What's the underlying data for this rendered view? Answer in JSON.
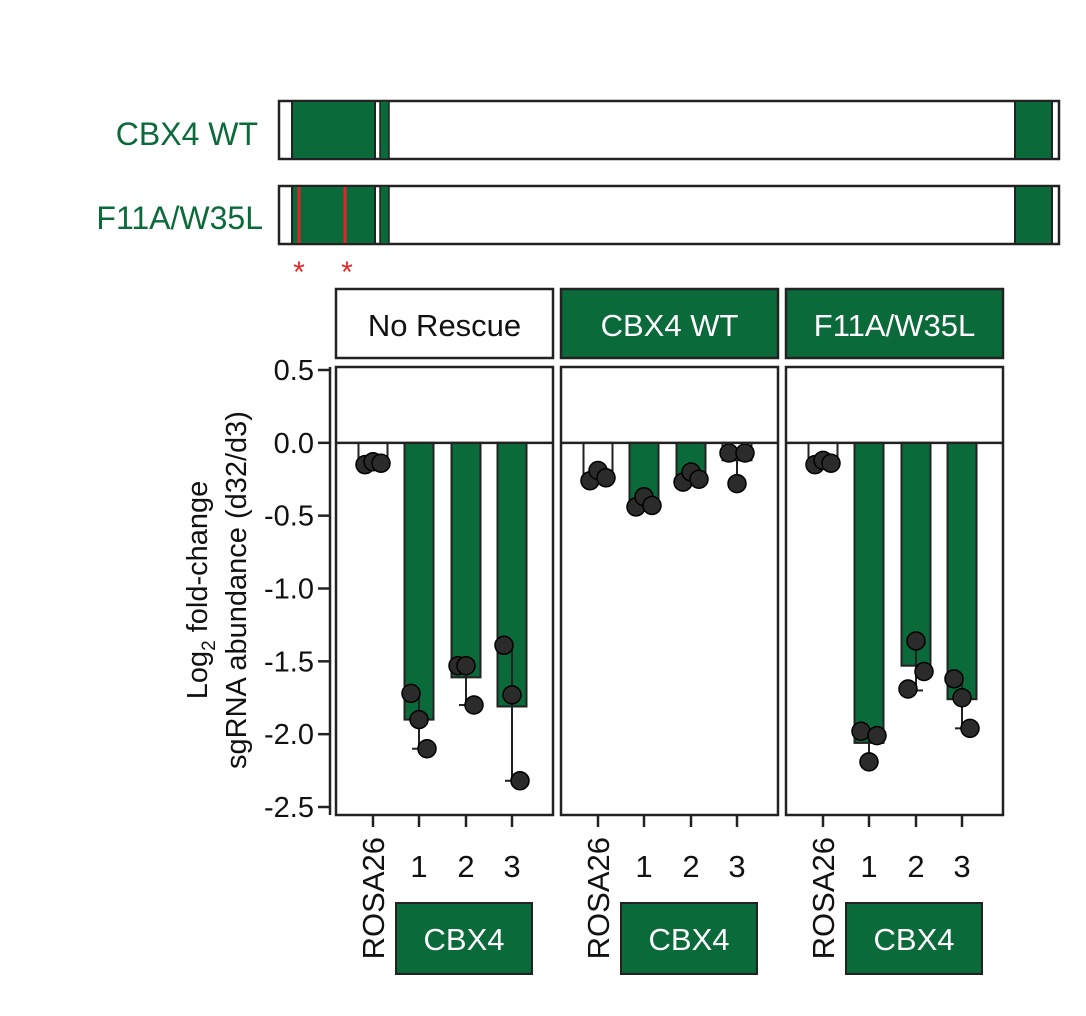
{
  "colors": {
    "green": "#0b6a3a",
    "red": "#e0262b",
    "dot": "#2b2b2b",
    "frame": "#222222",
    "white": "#ffffff"
  },
  "diagram": {
    "wt_label": "CBX4 WT",
    "mut_label": "F11A/W35L",
    "star_glyph": "*"
  },
  "chart_data": {
    "type": "bar",
    "ylabel_line1": "Log",
    "ylabel_sub": "2",
    "ylabel_line1_rest": " fold-change",
    "ylabel_line2": "sgRNA abundance (d32/d3)",
    "ylim": [
      -2.5,
      0.5
    ],
    "yticks": [
      0.5,
      0.0,
      -0.5,
      -1.0,
      -1.5,
      -2.0,
      -2.5
    ],
    "ytick_labels": [
      "0.5",
      "0.0",
      "-0.5",
      "-1.0",
      "-1.5",
      "-2.0",
      "-2.5"
    ],
    "categories": [
      "ROSA26",
      "1",
      "2",
      "3"
    ],
    "group_label": "CBX4",
    "panels": [
      {
        "title": "No Rescue",
        "header_style": "white",
        "bars": [
          {
            "value": -0.13,
            "err_low": -0.15,
            "err_high": -0.11,
            "points": [
              -0.15,
              -0.13,
              -0.14
            ],
            "filled": false
          },
          {
            "value": -1.9,
            "err_low": -2.1,
            "err_high": -1.72,
            "points": [
              -1.72,
              -1.9,
              -2.1
            ],
            "filled": true
          },
          {
            "value": -1.61,
            "err_low": -1.8,
            "err_high": -1.53,
            "points": [
              -1.53,
              -1.53,
              -1.8
            ],
            "filled": true
          },
          {
            "value": -1.81,
            "err_low": -2.32,
            "err_high": -1.39,
            "points": [
              -1.39,
              -1.73,
              -2.32
            ],
            "filled": true
          }
        ]
      },
      {
        "title": "CBX4 WT",
        "header_style": "green",
        "bars": [
          {
            "value": -0.22,
            "err_low": -0.26,
            "err_high": -0.19,
            "points": [
              -0.26,
              -0.19,
              -0.24
            ],
            "filled": false
          },
          {
            "value": -0.41,
            "err_low": -0.44,
            "err_high": -0.37,
            "points": [
              -0.44,
              -0.37,
              -0.43
            ],
            "filled": true
          },
          {
            "value": -0.23,
            "err_low": -0.27,
            "err_high": -0.2,
            "points": [
              -0.27,
              -0.2,
              -0.25
            ],
            "filled": true
          },
          {
            "value": -0.12,
            "err_low": -0.28,
            "err_high": -0.07,
            "points": [
              -0.07,
              -0.28,
              -0.07
            ],
            "filled": false
          }
        ]
      },
      {
        "title": "F11A/W35L",
        "header_style": "green",
        "bars": [
          {
            "value": -0.13,
            "err_low": -0.15,
            "err_high": -0.11,
            "points": [
              -0.15,
              -0.12,
              -0.14
            ],
            "filled": false
          },
          {
            "value": -2.06,
            "err_low": -2.19,
            "err_high": -1.98,
            "points": [
              -1.98,
              -2.19,
              -2.01
            ],
            "filled": true
          },
          {
            "value": -1.53,
            "err_low": -1.7,
            "err_high": -1.36,
            "points": [
              -1.69,
              -1.36,
              -1.57
            ],
            "filled": true
          },
          {
            "value": -1.76,
            "err_low": -1.96,
            "err_high": -1.62,
            "points": [
              -1.62,
              -1.75,
              -1.96
            ],
            "filled": true
          }
        ]
      }
    ]
  }
}
